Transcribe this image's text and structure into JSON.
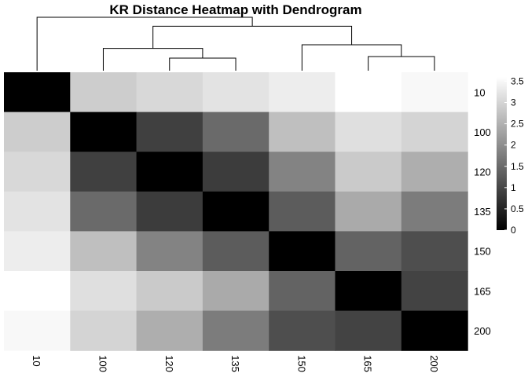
{
  "chart_data": {
    "type": "heatmap",
    "title": "KR Distance Heatmap with Dendrogram",
    "rows": [
      "10",
      "100",
      "120",
      "135",
      "150",
      "165",
      "200"
    ],
    "columns": [
      "10",
      "100",
      "120",
      "135",
      "150",
      "165",
      "200"
    ],
    "values": [
      [
        0.0,
        2.9,
        3.05,
        3.2,
        3.35,
        3.6,
        3.5
      ],
      [
        2.9,
        0.0,
        0.9,
        1.5,
        2.7,
        3.15,
        3.0
      ],
      [
        3.05,
        0.9,
        0.0,
        0.85,
        1.85,
        2.85,
        2.45
      ],
      [
        3.2,
        1.5,
        0.85,
        0.0,
        1.3,
        2.4,
        1.75
      ],
      [
        3.35,
        2.7,
        1.85,
        1.3,
        0.0,
        1.4,
        1.1
      ],
      [
        3.6,
        3.15,
        2.85,
        2.4,
        1.4,
        0.0,
        0.95
      ],
      [
        3.5,
        3.0,
        2.45,
        1.75,
        1.1,
        0.95,
        0.0
      ]
    ],
    "colorbar": {
      "min": 0,
      "max": 3.6,
      "ticks": [
        "0",
        "0.5",
        "1",
        "1.5",
        "2",
        "2.5",
        "3",
        "3.5"
      ],
      "tick_values": [
        0,
        0.5,
        1,
        1.5,
        2,
        2.5,
        3,
        3.5
      ],
      "low_color": "#000000",
      "high_color": "#ffffff"
    },
    "dendrogram": {
      "order": [
        "10",
        "100",
        "120",
        "135",
        "150",
        "165",
        "200"
      ],
      "merges": [
        {
          "left": 2,
          "right": 3,
          "height": 0.85
        },
        {
          "left": 5,
          "right": 6,
          "height": 0.95
        },
        {
          "left": 1,
          "right": -1,
          "height": 1.5
        },
        {
          "left": 4,
          "right": -2,
          "height": 1.75
        },
        {
          "left": -3,
          "right": -4,
          "height": 3.0
        },
        {
          "left": 0,
          "right": -5,
          "height": 3.6
        }
      ]
    },
    "legend": "right",
    "grid": false
  }
}
